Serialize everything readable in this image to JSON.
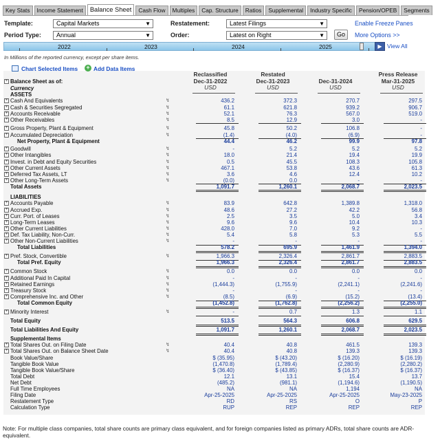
{
  "tabs": [
    "Key Stats",
    "Income Statement",
    "Balance Sheet",
    "Cash Flow",
    "Multiples",
    "Cap. Structure",
    "Ratios",
    "Supplemental",
    "Industry Specific",
    "Pension/OPEB",
    "Segments"
  ],
  "active_tab": "Balance Sheet",
  "controls": {
    "template_label": "Template:",
    "template_value": "Capital Markets",
    "period_label": "Period Type:",
    "period_value": "Annual",
    "restatement_label": "Restatement:",
    "restatement_value": "Latest Filings",
    "order_label": "Order:",
    "order_value": "Latest on Right",
    "go": "Go",
    "freeze": "Enable Freeze Panes",
    "more_options": "More Options >>",
    "view_all": "View All"
  },
  "timeline": {
    "years": [
      "2022",
      "2023",
      "2024",
      "2025"
    ]
  },
  "note_top": "In Millions of the reported currency, except per share items.",
  "actions": {
    "chart": "Chart Selected Items",
    "add": "Add Data Items"
  },
  "columns": [
    {
      "line1": "Reclassified",
      "line2": "Dec-31-2022",
      "cur": "USD"
    },
    {
      "line1": "Restated",
      "line2": "Dec-31-2023",
      "cur": "USD"
    },
    {
      "line1": "",
      "line2": "Dec-31-2024",
      "cur": "USD"
    },
    {
      "line1": "Press Release",
      "line2": "Mar-31-2025",
      "cur": "USD"
    }
  ],
  "header_rows": {
    "title": "Balance Sheet as of:",
    "currency": "Currency"
  },
  "rows": [
    {
      "label": "ASSETS",
      "type": "section"
    },
    {
      "label": "Cash And Equivalents",
      "x": 1,
      "v": [
        "436.2",
        "372.3",
        "270.7",
        "297.5"
      ]
    },
    {
      "label": "Cash & Securities Segregated",
      "x": 1,
      "v": [
        "61.1",
        "621.8",
        "939.2",
        "906.7"
      ]
    },
    {
      "label": "Accounts Receivable",
      "x": 1,
      "v": [
        "52.1",
        "76.3",
        "567.0",
        "519.0"
      ]
    },
    {
      "label": "Other Receivables",
      "x": 1,
      "v": [
        "8.5",
        "12.9",
        "3.0",
        "-"
      ],
      "ul": 1
    },
    {
      "label": "Gross Property, Plant & Equipment",
      "x": 1,
      "v": [
        "45.8",
        "50.2",
        "106.8",
        "-"
      ]
    },
    {
      "label": "Accumulated Depreciation",
      "x": 1,
      "v": [
        "(1.4)",
        "(4.0)",
        "(6.9)",
        "-"
      ],
      "ul": 1
    },
    {
      "label": "Net Property, Plant & Equipment",
      "type": "total2",
      "v": [
        "44.4",
        "46.2",
        "99.9",
        "97.8"
      ]
    },
    {
      "label": "Goodwill",
      "x": 1,
      "v": [
        "-",
        "5.2",
        "5.2",
        "5.2"
      ]
    },
    {
      "label": "Other Intangibles",
      "x": 1,
      "v": [
        "18.0",
        "21.4",
        "19.4",
        "19.9"
      ]
    },
    {
      "label": "Invest. in Debt and Equity Securities",
      "x": 1,
      "v": [
        "0.5",
        "45.5",
        "108.3",
        "105.8"
      ]
    },
    {
      "label": "Other Current Assets",
      "x": 1,
      "v": [
        "467.1",
        "53.8",
        "43.6",
        "61.3"
      ]
    },
    {
      "label": "Deferred Tax Assets, LT",
      "x": 1,
      "v": [
        "3.6",
        "4.6",
        "12.4",
        "10.2"
      ]
    },
    {
      "label": "Other Long-Term Assets",
      "x": 1,
      "v": [
        "(0.0)",
        "0.0",
        "-",
        "-"
      ],
      "ul": 1
    },
    {
      "label": "Total Assets",
      "type": "total",
      "v": [
        "1,091.7",
        "1,260.1",
        "2,068.7",
        "2,023.5"
      ],
      "dl": 1
    },
    {
      "label": "LIABILITIES",
      "type": "section"
    },
    {
      "label": "Accounts Payable",
      "x": 1,
      "v": [
        "83.9",
        "642.8",
        "1,389.8",
        "1,318.0"
      ]
    },
    {
      "label": "Accrued Exp.",
      "x": 1,
      "v": [
        "48.6",
        "27.2",
        "42.2",
        "56.8"
      ]
    },
    {
      "label": "Curr. Port. of Leases",
      "x": 1,
      "v": [
        "2.5",
        "3.5",
        "5.0",
        "3.4"
      ]
    },
    {
      "label": "Long-Term Leases",
      "x": 1,
      "v": [
        "9.6",
        "9.6",
        "10.4",
        "10.3"
      ]
    },
    {
      "label": "Other Current Liabilities",
      "x": 1,
      "v": [
        "428.0",
        "7.0",
        "9.2",
        "-"
      ]
    },
    {
      "label": "Def. Tax Liability, Non-Curr.",
      "x": 1,
      "v": [
        "5.4",
        "5.8",
        "5.3",
        "5.5"
      ]
    },
    {
      "label": "Other Non-Current Liabilities",
      "x": 1,
      "v": [
        "-",
        "-",
        "-",
        "-"
      ],
      "ul": 1
    },
    {
      "label": "Total Liabilities",
      "type": "total2",
      "v": [
        "578.2",
        "695.9",
        "1,461.9",
        "1,394.0"
      ],
      "dl": 1
    },
    {
      "label": "Pref. Stock, Convertible",
      "x": 1,
      "v": [
        "1,966.3",
        "2,326.4",
        "2,861.7",
        "2,883.5"
      ],
      "ul": 1
    },
    {
      "label": "Total Pref. Equity",
      "type": "total2",
      "v": [
        "1,966.3",
        "2,326.4",
        "2,861.7",
        "2,883.5"
      ],
      "dl": 1
    },
    {
      "label": "Common Stock",
      "x": 1,
      "v": [
        "0.0",
        "0.0",
        "0.0",
        "0.0"
      ]
    },
    {
      "label": "Additional Paid In Capital",
      "x": 1,
      "v": [
        "-",
        "-",
        "-",
        "-"
      ]
    },
    {
      "label": "Retained Earnings",
      "x": 1,
      "v": [
        "(1,444.3)",
        "(1,755.9)",
        "(2,241.1)",
        "(2,241.6)"
      ]
    },
    {
      "label": "Treasury Stock",
      "x": 1,
      "v": [
        "-",
        "-",
        "-",
        "-"
      ]
    },
    {
      "label": "Comprehensive Inc. and Other",
      "x": 1,
      "v": [
        "(8.5)",
        "(6.9)",
        "(15.2)",
        "(13.4)"
      ],
      "ul": 1
    },
    {
      "label": "Total Common Equity",
      "type": "total2",
      "v": [
        "(1,452.8)",
        "(1,762.8)",
        "(2,256.2)",
        "(2,255.0)"
      ],
      "dl": 1
    },
    {
      "label": "Minority Interest",
      "x": 1,
      "v": [
        "-",
        "0.7",
        "1.3",
        "1.1"
      ],
      "ul": 1
    },
    {
      "label": "Total Equity",
      "type": "total",
      "v": [
        "513.5",
        "564.3",
        "606.8",
        "629.5"
      ],
      "dl": 1
    },
    {
      "label": "Total Liabilities And Equity",
      "type": "total",
      "v": [
        "1,091.7",
        "1,260.1",
        "2,068.7",
        "2,023.5"
      ],
      "dl": 1
    },
    {
      "label": "Supplemental Items",
      "type": "section"
    },
    {
      "label": "Total Shares Out. on Filing Date",
      "x": 1,
      "v": [
        "40.4",
        "40.8",
        "461.5",
        "139.3"
      ]
    },
    {
      "label": "Total Shares Out. on Balance Sheet Date",
      "x": 1,
      "v": [
        "40.4",
        "40.8",
        "139.3",
        "139.3"
      ]
    },
    {
      "label": "Book Value/Share",
      "v": [
        "$ (35.95)",
        "$ (43.20)",
        "$ (16.20)",
        "$ (16.19)"
      ]
    },
    {
      "label": "Tangible Book Value",
      "v": [
        "(1,470.8)",
        "(1,789.4)",
        "(2,280.9)",
        "(2,280.2)"
      ]
    },
    {
      "label": "Tangible Book Value/Share",
      "v": [
        "$ (36.40)",
        "$ (43.85)",
        "$ (16.37)",
        "$ (16.37)"
      ]
    },
    {
      "label": "Total Debt",
      "v": [
        "12.1",
        "13.1",
        "15.4",
        "13.7"
      ]
    },
    {
      "label": "Net Debt",
      "v": [
        "(485.2)",
        "(981.1)",
        "(1,194.6)",
        "(1,190.5)"
      ]
    },
    {
      "label": "Full Time Employees",
      "v": [
        "NA",
        "NA",
        "1,194",
        "NA"
      ]
    },
    {
      "label": "Filing Date",
      "v": [
        "Apr-25-2025",
        "Apr-25-2025",
        "Apr-25-2025",
        "May-23-2025"
      ]
    },
    {
      "label": "Restatement Type",
      "v": [
        "RD",
        "RS",
        "O",
        "P"
      ]
    },
    {
      "label": "Calculation Type",
      "v": [
        "RUP",
        "REP",
        "REP",
        "REP"
      ]
    }
  ],
  "footnote": "Note: For multiple class companies, total share counts are primary class equivalent, and for foreign companies listed as primary ADRs, total share counts are ADR-equivalent."
}
